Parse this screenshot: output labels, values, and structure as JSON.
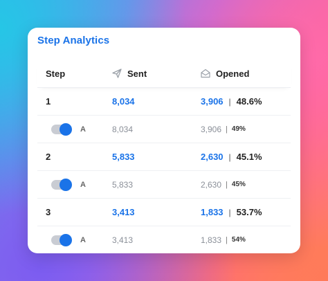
{
  "card": {
    "title": "Step Analytics"
  },
  "header": {
    "step": "Step",
    "sent": "Sent",
    "opened": "Opened"
  },
  "rows": [
    {
      "step": "1",
      "sent": "8,034",
      "opened": "3,906",
      "rate": "48.6%",
      "variant": {
        "label": "A",
        "enabled": true,
        "sent": "8,034",
        "opened": "3,906",
        "rate": "49%"
      }
    },
    {
      "step": "2",
      "sent": "5,833",
      "opened": "2,630",
      "rate": "45.1%",
      "variant": {
        "label": "A",
        "enabled": true,
        "sent": "5,833",
        "opened": "2,630",
        "rate": "45%"
      }
    },
    {
      "step": "3",
      "sent": "3,413",
      "opened": "1,833",
      "rate": "53.7%",
      "variant": {
        "label": "A",
        "enabled": true,
        "sent": "3,413",
        "opened": "1,833",
        "rate": "54%"
      }
    }
  ],
  "colors": {
    "accent": "#1a73e8",
    "toggle_track": "#c9ccd3"
  },
  "icons": {
    "sent": "paper-plane-icon",
    "opened": "open-envelope-icon"
  }
}
